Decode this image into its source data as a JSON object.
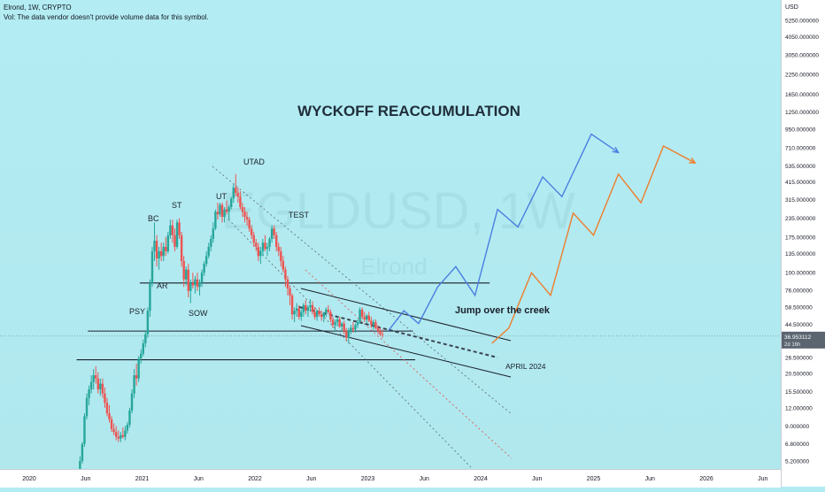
{
  "header": {
    "symbol_line": "Elrond, 1W, CRYPTO",
    "vol_line": "Vol: The data vendor doesn't provide volume data for this symbol."
  },
  "watermark": {
    "symbol": "EGLDUSD, 1W",
    "name": "Elrond"
  },
  "chart_data": {
    "type": "candlestick",
    "title": "WYCKOFF REACCUMULATION",
    "scale": "log",
    "currency_label": "USD",
    "y_ticks": [
      "5250.000000",
      "4050.000000",
      "3050.000000",
      "2250.000000",
      "1650.000000",
      "1250.000000",
      "950.000000",
      "710.000000",
      "535.000000",
      "415.000000",
      "315.000000",
      "235.000000",
      "175.000000",
      "135.000000",
      "100.000000",
      "76.000000",
      "58.500000",
      "44.500000",
      "36.953112",
      "26.500000",
      "20.500000",
      "15.500000",
      "12.000000",
      "9.000000",
      "6.800000",
      "5.200000"
    ],
    "x_ticks": [
      "2020",
      "Jun",
      "2021",
      "Jun",
      "2022",
      "Jun",
      "2023",
      "Jun",
      "2024",
      "Jun",
      "2025",
      "Jun",
      "2026",
      "Jun"
    ],
    "current_price": "36.953112",
    "countdown": "2d 16h",
    "annotations": [
      "PSY",
      "BC",
      "AR",
      "ST",
      "SOW",
      "UT",
      "UTAD",
      "TEST",
      "Jump over the creek",
      "APRIL 2024"
    ],
    "candles": [
      [
        2020.45,
        4,
        5.6,
        4,
        5.2
      ],
      [
        2020.47,
        5.2,
        7,
        5,
        6.8
      ],
      [
        2020.49,
        6.8,
        11,
        6.5,
        10.5
      ],
      [
        2020.51,
        10.5,
        15,
        10,
        14
      ],
      [
        2020.53,
        14,
        17,
        12.5,
        16
      ],
      [
        2020.55,
        16,
        20,
        15,
        18
      ],
      [
        2020.57,
        18,
        22,
        16,
        20
      ],
      [
        2020.59,
        20,
        23,
        17.5,
        19
      ],
      [
        2020.61,
        19,
        21,
        15,
        16
      ],
      [
        2020.63,
        16,
        19,
        14.5,
        17.5
      ],
      [
        2020.65,
        17.5,
        19,
        14,
        15
      ],
      [
        2020.67,
        15,
        16.5,
        12,
        13
      ],
      [
        2020.69,
        13,
        14,
        10.5,
        11
      ],
      [
        2020.71,
        11,
        12.5,
        9.5,
        10
      ],
      [
        2020.73,
        10,
        10.5,
        8.2,
        8.6
      ],
      [
        2020.75,
        8.6,
        9.4,
        7.8,
        8.2
      ],
      [
        2020.77,
        8.2,
        9,
        7.2,
        7.6
      ],
      [
        2020.79,
        7.6,
        8.4,
        7,
        7.4
      ],
      [
        2020.81,
        7.4,
        8.2,
        7,
        7.8
      ],
      [
        2020.83,
        7.8,
        8.8,
        7.4,
        7.6
      ],
      [
        2020.85,
        7.6,
        9,
        7.2,
        8.4
      ],
      [
        2020.87,
        8.4,
        9.6,
        8,
        9.2
      ],
      [
        2020.89,
        9.2,
        12,
        8.8,
        11.5
      ],
      [
        2020.91,
        11.5,
        16,
        11,
        15
      ],
      [
        2020.93,
        15,
        22,
        14,
        20
      ],
      [
        2020.95,
        20,
        24,
        17,
        19
      ],
      [
        2020.97,
        19,
        27,
        18,
        26
      ],
      [
        2020.99,
        26,
        30,
        24,
        28
      ],
      [
        2021.01,
        28,
        35,
        27,
        33
      ],
      [
        2021.03,
        33,
        40,
        31,
        38
      ],
      [
        2021.05,
        38,
        58,
        36,
        55
      ],
      [
        2021.07,
        55,
        90,
        50,
        85
      ],
      [
        2021.09,
        85,
        150,
        80,
        140
      ],
      [
        2021.11,
        140,
        220,
        120,
        165
      ],
      [
        2021.13,
        165,
        180,
        110,
        125
      ],
      [
        2021.15,
        125,
        150,
        105,
        140
      ],
      [
        2021.17,
        140,
        160,
        120,
        130
      ],
      [
        2021.19,
        130,
        160,
        120,
        150
      ],
      [
        2021.21,
        150,
        175,
        130,
        140
      ],
      [
        2021.23,
        140,
        190,
        135,
        180
      ],
      [
        2021.25,
        180,
        230,
        170,
        210
      ],
      [
        2021.27,
        210,
        230,
        160,
        180
      ],
      [
        2021.29,
        180,
        200,
        140,
        150
      ],
      [
        2021.31,
        150,
        230,
        145,
        220
      ],
      [
        2021.33,
        220,
        235,
        170,
        180
      ],
      [
        2021.35,
        180,
        190,
        110,
        120
      ],
      [
        2021.37,
        120,
        130,
        80,
        90
      ],
      [
        2021.39,
        90,
        110,
        82,
        105
      ],
      [
        2021.41,
        105,
        115,
        68,
        75
      ],
      [
        2021.43,
        75,
        90,
        62,
        85
      ],
      [
        2021.45,
        85,
        100,
        78,
        82
      ],
      [
        2021.47,
        82,
        95,
        72,
        90
      ],
      [
        2021.49,
        90,
        100,
        75,
        80
      ],
      [
        2021.51,
        80,
        90,
        70,
        86
      ],
      [
        2021.53,
        86,
        105,
        80,
        100
      ],
      [
        2021.55,
        100,
        120,
        95,
        115
      ],
      [
        2021.57,
        115,
        140,
        110,
        130
      ],
      [
        2021.59,
        130,
        160,
        125,
        150
      ],
      [
        2021.61,
        150,
        180,
        140,
        170
      ],
      [
        2021.63,
        170,
        220,
        160,
        200
      ],
      [
        2021.65,
        200,
        270,
        195,
        260
      ],
      [
        2021.67,
        260,
        300,
        230,
        250
      ],
      [
        2021.69,
        250,
        300,
        240,
        290
      ],
      [
        2021.71,
        290,
        300,
        220,
        240
      ],
      [
        2021.73,
        240,
        280,
        220,
        270
      ],
      [
        2021.75,
        270,
        310,
        250,
        260
      ],
      [
        2021.77,
        260,
        290,
        230,
        280
      ],
      [
        2021.79,
        280,
        330,
        270,
        320
      ],
      [
        2021.81,
        320,
        400,
        300,
        380
      ],
      [
        2021.83,
        380,
        470,
        330,
        350
      ],
      [
        2021.85,
        350,
        380,
        300,
        330
      ],
      [
        2021.87,
        330,
        360,
        270,
        280
      ],
      [
        2021.89,
        280,
        300,
        240,
        260
      ],
      [
        2021.91,
        260,
        280,
        220,
        240
      ],
      [
        2021.93,
        240,
        260,
        210,
        230
      ],
      [
        2021.95,
        230,
        240,
        190,
        200
      ],
      [
        2021.97,
        200,
        210,
        170,
        180
      ],
      [
        2021.99,
        180,
        190,
        150,
        160
      ],
      [
        2022.01,
        160,
        170,
        140,
        150
      ],
      [
        2022.03,
        150,
        160,
        120,
        130
      ],
      [
        2022.05,
        130,
        150,
        115,
        140
      ],
      [
        2022.07,
        140,
        170,
        130,
        160
      ],
      [
        2022.09,
        160,
        180,
        140,
        145
      ],
      [
        2022.11,
        145,
        160,
        130,
        150
      ],
      [
        2022.13,
        150,
        175,
        140,
        170
      ],
      [
        2022.15,
        170,
        210,
        160,
        200
      ],
      [
        2022.17,
        200,
        210,
        170,
        180
      ],
      [
        2022.19,
        180,
        190,
        140,
        150
      ],
      [
        2022.21,
        150,
        160,
        130,
        140
      ],
      [
        2022.23,
        140,
        150,
        110,
        120
      ],
      [
        2022.25,
        120,
        130,
        100,
        105
      ],
      [
        2022.27,
        105,
        110,
        80,
        90
      ],
      [
        2022.29,
        90,
        95,
        70,
        78
      ],
      [
        2022.31,
        78,
        82,
        60,
        70
      ],
      [
        2022.33,
        70,
        72,
        48,
        52
      ],
      [
        2022.35,
        52,
        58,
        46,
        55
      ],
      [
        2022.37,
        55,
        62,
        50,
        57
      ],
      [
        2022.39,
        57,
        60,
        48,
        50
      ],
      [
        2022.41,
        50,
        56,
        47,
        54
      ],
      [
        2022.43,
        54,
        62,
        50,
        60
      ],
      [
        2022.45,
        60,
        65,
        52,
        55
      ],
      [
        2022.47,
        55,
        60,
        50,
        58
      ],
      [
        2022.49,
        58,
        66,
        54,
        60
      ],
      [
        2022.51,
        60,
        64,
        52,
        54
      ],
      [
        2022.53,
        54,
        58,
        48,
        50
      ],
      [
        2022.55,
        50,
        56,
        47,
        55
      ],
      [
        2022.57,
        55,
        58,
        50,
        52
      ],
      [
        2022.59,
        52,
        55,
        47,
        50
      ],
      [
        2022.61,
        50,
        54,
        46,
        53
      ],
      [
        2022.63,
        53,
        58,
        50,
        56
      ],
      [
        2022.65,
        56,
        60,
        52,
        54
      ],
      [
        2022.67,
        54,
        56,
        46,
        48
      ],
      [
        2022.69,
        48,
        50,
        42,
        44
      ],
      [
        2022.71,
        44,
        48,
        40,
        46
      ],
      [
        2022.73,
        46,
        50,
        43,
        48
      ],
      [
        2022.75,
        48,
        50,
        42,
        43
      ],
      [
        2022.77,
        43,
        46,
        40,
        45
      ],
      [
        2022.79,
        45,
        47,
        38,
        40
      ],
      [
        2022.81,
        40,
        42,
        34,
        36
      ],
      [
        2022.83,
        36,
        42,
        33,
        40
      ],
      [
        2022.85,
        40,
        44,
        38,
        42
      ],
      [
        2022.87,
        42,
        46,
        39,
        41
      ],
      [
        2022.89,
        41,
        45,
        39,
        44
      ],
      [
        2022.91,
        44,
        48,
        42,
        46
      ],
      [
        2022.93,
        46,
        58,
        45,
        56
      ],
      [
        2022.95,
        56,
        58,
        48,
        50
      ],
      [
        2022.97,
        50,
        54,
        46,
        48
      ],
      [
        2022.99,
        48,
        52,
        45,
        51
      ],
      [
        2023.01,
        51,
        54,
        46,
        47
      ],
      [
        2023.03,
        47,
        50,
        42,
        44
      ],
      [
        2023.05,
        44,
        48,
        41,
        46
      ],
      [
        2023.07,
        46,
        48,
        41,
        42
      ],
      [
        2023.09,
        42,
        44,
        38,
        40
      ],
      [
        2023.11,
        40,
        42,
        37,
        38
      ],
      [
        2023.13,
        38,
        41,
        36,
        37.5
      ]
    ],
    "horizontal_levels": [
      85,
      40,
      25.5
    ],
    "projection_blue": [
      [
        2023.18,
        40
      ],
      [
        2023.32,
        55
      ],
      [
        2023.45,
        45
      ],
      [
        2023.62,
        80
      ],
      [
        2023.78,
        110
      ],
      [
        2023.95,
        70
      ],
      [
        2024.15,
        270
      ],
      [
        2024.33,
        205
      ],
      [
        2024.55,
        450
      ],
      [
        2024.72,
        330
      ],
      [
        2024.98,
        880
      ],
      [
        2025.22,
        660
      ]
    ],
    "projection_orange": [
      [
        2024.1,
        33
      ],
      [
        2024.25,
        42
      ],
      [
        2024.45,
        100
      ],
      [
        2024.62,
        70
      ],
      [
        2024.82,
        255
      ],
      [
        2025.0,
        180
      ],
      [
        2025.22,
        470
      ],
      [
        2025.42,
        300
      ],
      [
        2025.62,
        730
      ],
      [
        2025.9,
        560
      ]
    ]
  }
}
